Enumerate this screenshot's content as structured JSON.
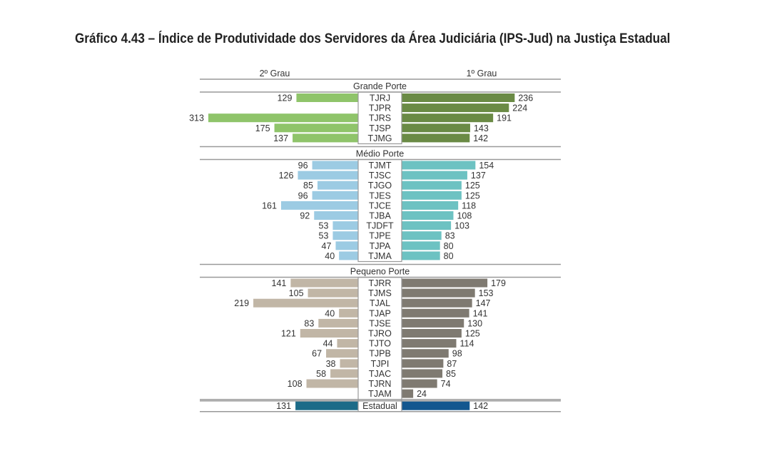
{
  "chart_data": {
    "type": "bar",
    "title": "Gráfico 4.43 – Índice de Produtividade dos Servidores da Área Judiciária (IPS-Jud) na Justiça Estadual",
    "left_label": "2º Grau",
    "right_label": "1º Grau",
    "groups": [
      {
        "name": "Grande Porte",
        "colors": {
          "left": "#8fc46a",
          "right": "#6a8a45"
        },
        "categories": [
          "TJRJ",
          "TJPR",
          "TJRS",
          "TJSP",
          "TJMG"
        ],
        "left": [
          129,
          null,
          313,
          175,
          137
        ],
        "right": [
          236,
          224,
          191,
          143,
          142
        ]
      },
      {
        "name": "Médio Porte",
        "colors": {
          "left": "#9ccbe3",
          "right": "#6dc2c2"
        },
        "categories": [
          "TJMT",
          "TJSC",
          "TJGO",
          "TJES",
          "TJCE",
          "TJBA",
          "TJDFT",
          "TJPE",
          "TJPA",
          "TJMA"
        ],
        "left": [
          96,
          126,
          85,
          96,
          161,
          92,
          53,
          53,
          47,
          40
        ],
        "right": [
          154,
          137,
          125,
          125,
          118,
          108,
          103,
          83,
          80,
          80
        ]
      },
      {
        "name": "Pequeno Porte",
        "colors": {
          "left": "#c1b6a6",
          "right": "#7f7a71"
        },
        "categories": [
          "TJRR",
          "TJMS",
          "TJAL",
          "TJAP",
          "TJSE",
          "TJRO",
          "TJTO",
          "TJPB",
          "TJPI",
          "TJAC",
          "TJRN",
          "TJAM"
        ],
        "left": [
          141,
          105,
          219,
          40,
          83,
          121,
          44,
          67,
          38,
          58,
          108,
          null
        ],
        "right": [
          179,
          153,
          147,
          141,
          130,
          125,
          114,
          98,
          87,
          85,
          74,
          24
        ]
      }
    ],
    "total": {
      "name": "Estadual",
      "colors": {
        "left": "#1c6b88",
        "right": "#13578f"
      },
      "left": 131,
      "right": 142
    }
  }
}
